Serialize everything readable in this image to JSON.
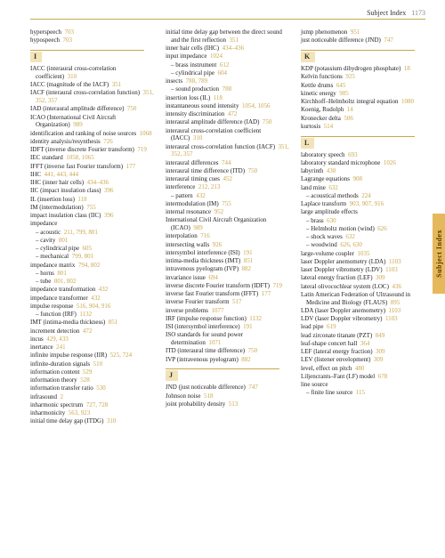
{
  "header": {
    "title": "Subject Index",
    "page_number": "1173"
  },
  "side_tab": "Subject Index",
  "colors": {
    "accent": "#c9a64b",
    "tab_bg": "#e6b85c",
    "tab_text": "#5a3a00",
    "letter_bg": "#f2e3b8",
    "page_num_color": "#c9a64b"
  },
  "columns": [
    [
      {
        "t": "e",
        "text": "hyperspeech",
        "pg": "703"
      },
      {
        "t": "e",
        "text": "hypospeech",
        "pg": "703"
      },
      {
        "t": "L",
        "letter": "I"
      },
      {
        "t": "e",
        "text": "IACC (interaural cross-correlation coefficient)",
        "pg": "310"
      },
      {
        "t": "e",
        "text": "IACC (magnitude of the IACF)",
        "pg": "351"
      },
      {
        "t": "e",
        "text": "IACF (interaural cross-correlation function)",
        "pg": "351, 352, 357"
      },
      {
        "t": "e",
        "text": "IAD (interaural amplitude difference)",
        "pg": "750"
      },
      {
        "t": "e",
        "text": "ICAO (International Civil Aircraft Organization)",
        "pg": "989"
      },
      {
        "t": "e",
        "text": "identification and ranking of noise sources",
        "pg": "1068"
      },
      {
        "t": "e",
        "text": "identity analysis/resynthesis",
        "pg": "726"
      },
      {
        "t": "e",
        "text": "IDFT (inverse discrete Fourier transform)",
        "pg": "719"
      },
      {
        "t": "e",
        "text": "IEC standard",
        "pg": "1058, 1065"
      },
      {
        "t": "e",
        "text": "IFFT (inverse fast Fourier transform)",
        "pg": "177"
      },
      {
        "t": "e",
        "text": "IHC",
        "pg": "441, 443, 444"
      },
      {
        "t": "e",
        "text": "IHC (inner hair cells)",
        "pg": "434–436"
      },
      {
        "t": "e",
        "text": "IIC (impact insulation class)",
        "pg": "396"
      },
      {
        "t": "e",
        "text": "IL (insertion loss)",
        "pg": "118"
      },
      {
        "t": "e",
        "text": "IM (intermodulation)",
        "pg": "755"
      },
      {
        "t": "e",
        "text": "impact insulation class (IIC)",
        "pg": "396"
      },
      {
        "t": "e",
        "text": "impedance",
        "pg": ""
      },
      {
        "t": "s",
        "text": "– acoustic",
        "pg": "211, 799, 801"
      },
      {
        "t": "s",
        "text": "– cavity",
        "pg": "801"
      },
      {
        "t": "s",
        "text": "– cylindrical pipe",
        "pg": "605"
      },
      {
        "t": "s",
        "text": "– mechanical",
        "pg": "799, 801"
      },
      {
        "t": "e",
        "text": "impedance matrix",
        "pg": "794, 802"
      },
      {
        "t": "s",
        "text": "– horns",
        "pg": "801"
      },
      {
        "t": "s",
        "text": "– tube",
        "pg": "801, 802"
      },
      {
        "t": "e",
        "text": "impedance transformation",
        "pg": "432"
      },
      {
        "t": "e",
        "text": "impedance transformer",
        "pg": "432"
      },
      {
        "t": "e",
        "text": "impulse response",
        "pg": "516, 904, 916"
      },
      {
        "t": "s",
        "text": "– function (IRF)",
        "pg": "1132"
      },
      {
        "t": "e",
        "text": "IMT (intima-media thickness)",
        "pg": "851"
      },
      {
        "t": "e",
        "text": "increment detection",
        "pg": "472"
      },
      {
        "t": "e",
        "text": "incus",
        "pg": "429, 433"
      },
      {
        "t": "e",
        "text": "inertance",
        "pg": "241"
      },
      {
        "t": "e",
        "text": "infinite impulse response (IIR)",
        "pg": "525, 724"
      },
      {
        "t": "e",
        "text": "infinite-duration signals",
        "pg": "510"
      },
      {
        "t": "e",
        "text": "information content",
        "pg": "529"
      },
      {
        "t": "e",
        "text": "information theory",
        "pg": "528"
      },
      {
        "t": "e",
        "text": "information transfer ratio",
        "pg": "530"
      },
      {
        "t": "e",
        "text": "infrasound",
        "pg": "2"
      },
      {
        "t": "e",
        "text": "inharmonic spectrum",
        "pg": "727, 728"
      },
      {
        "t": "e",
        "text": "inharmonicity",
        "pg": "563, 923"
      },
      {
        "t": "e",
        "text": "initial time delay gap (ITDG)",
        "pg": "310"
      }
    ],
    [
      {
        "t": "e",
        "text": "initial time delay gap between the direct sound and the first reflection",
        "pg": "351"
      },
      {
        "t": "e",
        "text": "inner hair cells (IHC)",
        "pg": "434–436"
      },
      {
        "t": "e",
        "text": "input impedance",
        "pg": "1024"
      },
      {
        "t": "s",
        "text": "– brass instrument",
        "pg": "612"
      },
      {
        "t": "s",
        "text": "– cylindrical pipe",
        "pg": "604"
      },
      {
        "t": "e",
        "text": "insects",
        "pg": "788, 789"
      },
      {
        "t": "s",
        "text": "– sound production",
        "pg": "788"
      },
      {
        "t": "e",
        "text": "insertion loss (IL)",
        "pg": "118"
      },
      {
        "t": "e",
        "text": "instantaneous sound intensity",
        "pg": "1054, 1056"
      },
      {
        "t": "e",
        "text": "intensity discrimination",
        "pg": "472"
      },
      {
        "t": "e",
        "text": "interaural amplitude difference (IAD)",
        "pg": "750"
      },
      {
        "t": "e",
        "text": "interaural cross-correlation coefficient (IACC)",
        "pg": "310"
      },
      {
        "t": "e",
        "text": "interaural cross-correlation function (IACF)",
        "pg": "351, 352, 357"
      },
      {
        "t": "e",
        "text": "interaural differences",
        "pg": "744"
      },
      {
        "t": "e",
        "text": "interaural time difference (ITD)",
        "pg": "750"
      },
      {
        "t": "e",
        "text": "interaural timing cues",
        "pg": "452"
      },
      {
        "t": "e",
        "text": "interference",
        "pg": "212, 213"
      },
      {
        "t": "s",
        "text": "– pattern",
        "pg": "432"
      },
      {
        "t": "e",
        "text": "intermodulation (IM)",
        "pg": "755"
      },
      {
        "t": "e",
        "text": "internal resonance",
        "pg": "952"
      },
      {
        "t": "e",
        "text": "International Civil Aircraft Organization (ICAO)",
        "pg": "989"
      },
      {
        "t": "e",
        "text": "interpolation",
        "pg": "716"
      },
      {
        "t": "e",
        "text": "intersecting walls",
        "pg": "926"
      },
      {
        "t": "e",
        "text": "intersymbol interference (ISI)",
        "pg": "191"
      },
      {
        "t": "e",
        "text": "intima-media thickness (IMT)",
        "pg": "851"
      },
      {
        "t": "e",
        "text": "intravenous pyelogram (IVP)",
        "pg": "882"
      },
      {
        "t": "e",
        "text": "invariance issue",
        "pg": "694"
      },
      {
        "t": "e",
        "text": "inverse discrete Fourier transform (IDFT)",
        "pg": "719"
      },
      {
        "t": "e",
        "text": "inverse fast Fourier transform (IFFT)",
        "pg": "177"
      },
      {
        "t": "e",
        "text": "inverse Fourier transform",
        "pg": "517"
      },
      {
        "t": "e",
        "text": "inverse problems",
        "pg": "1077"
      },
      {
        "t": "e",
        "text": "IRF (impulse response function)",
        "pg": "1132"
      },
      {
        "t": "e",
        "text": "ISI (intersymbol interference)",
        "pg": "191"
      },
      {
        "t": "e",
        "text": "ISO standards for sound power determination",
        "pg": "1071"
      },
      {
        "t": "e",
        "text": "ITD (interaural time difference)",
        "pg": "750"
      },
      {
        "t": "e",
        "text": "IVP (intravenous pyelogram)",
        "pg": "882"
      },
      {
        "t": "L",
        "letter": "J"
      },
      {
        "t": "e",
        "text": "JND (just noticeable difference)",
        "pg": "747"
      },
      {
        "t": "e",
        "text": "Johnson noise",
        "pg": "518"
      },
      {
        "t": "e",
        "text": "joint probability density",
        "pg": "513"
      }
    ],
    [
      {
        "t": "e",
        "text": "jump phenomenon",
        "pg": "951"
      },
      {
        "t": "e",
        "text": "just noticeable difference (JND)",
        "pg": "747"
      },
      {
        "t": "L",
        "letter": "K"
      },
      {
        "t": "e",
        "text": "KDP (potassium dihydrogen phosphate)",
        "pg": "18"
      },
      {
        "t": "e",
        "text": "Kelvin functions",
        "pg": "925"
      },
      {
        "t": "e",
        "text": "Kettle drums",
        "pg": "645"
      },
      {
        "t": "e",
        "text": "kinetic energy",
        "pg": "905"
      },
      {
        "t": "e",
        "text": "Kirchhoff–Helmholtz integral equation",
        "pg": "1080"
      },
      {
        "t": "e",
        "text": "Koenig, Rudolph",
        "pg": "14"
      },
      {
        "t": "e",
        "text": "Kronecker delta",
        "pg": "506"
      },
      {
        "t": "e",
        "text": "kurtosis",
        "pg": "514"
      },
      {
        "t": "L",
        "letter": "L"
      },
      {
        "t": "e",
        "text": "laboratory speech",
        "pg": "693"
      },
      {
        "t": "e",
        "text": "laboratory standard microphone",
        "pg": "1026"
      },
      {
        "t": "e",
        "text": "labyrinth",
        "pg": "430"
      },
      {
        "t": "e",
        "text": "Lagrange equations",
        "pg": "908"
      },
      {
        "t": "e",
        "text": "land mine",
        "pg": "632"
      },
      {
        "t": "s",
        "text": "– acoustical methods",
        "pg": "224"
      },
      {
        "t": "e",
        "text": "Laplace transform",
        "pg": "903, 907, 916"
      },
      {
        "t": "e",
        "text": "large amplitude effects",
        "pg": ""
      },
      {
        "t": "s",
        "text": "– brass",
        "pg": "630"
      },
      {
        "t": "s",
        "text": "– Helmholtz motion (wind)",
        "pg": "626"
      },
      {
        "t": "s",
        "text": "– shock waves",
        "pg": "632"
      },
      {
        "t": "s",
        "text": "– woodwind",
        "pg": "626, 630"
      },
      {
        "t": "e",
        "text": "large-volume coupler",
        "pg": "1035"
      },
      {
        "t": "e",
        "text": "laser Doppler anemometry (LDA)",
        "pg": "1103"
      },
      {
        "t": "e",
        "text": "laser Doppler vibrometry (LDV)",
        "pg": "1103"
      },
      {
        "t": "e",
        "text": "lateral energy fraction (LEF)",
        "pg": "309"
      },
      {
        "t": "e",
        "text": "lateral olivocochlear system (LOC)",
        "pg": "436"
      },
      {
        "t": "e",
        "text": "Latin American Federation of Ultrasound in Medicine and Biology (FLAUS)",
        "pg": "895"
      },
      {
        "t": "e",
        "text": "LDA (laser Doppler anemometry)",
        "pg": "1103"
      },
      {
        "t": "e",
        "text": "LDV (laser Doppler vibrometry)",
        "pg": "1103"
      },
      {
        "t": "e",
        "text": "lead pipe",
        "pg": "619"
      },
      {
        "t": "e",
        "text": "lead zirconate titanate (PZT)",
        "pg": "849"
      },
      {
        "t": "e",
        "text": "leaf-shape concert hall",
        "pg": "364"
      },
      {
        "t": "e",
        "text": "LEF (lateral energy fraction)",
        "pg": "309"
      },
      {
        "t": "e",
        "text": "LEV (listener envelopment)",
        "pg": "309"
      },
      {
        "t": "e",
        "text": "level, effect on pitch",
        "pg": "480"
      },
      {
        "t": "e",
        "text": "Liljencrants–Fant (LF) model",
        "pg": "678"
      },
      {
        "t": "e",
        "text": "line source",
        "pg": ""
      },
      {
        "t": "s",
        "text": "– finite line source",
        "pg": "115"
      }
    ]
  ]
}
